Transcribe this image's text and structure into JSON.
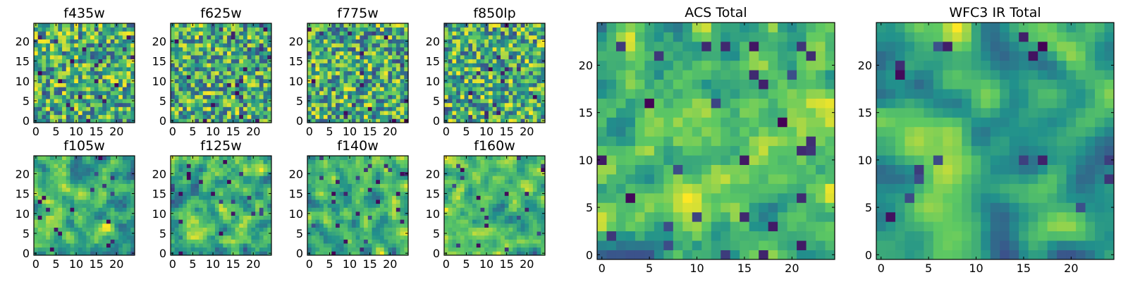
{
  "figure": {
    "colormap": "viridis",
    "colors": [
      "#440154",
      "#3b528b",
      "#21918c",
      "#5ec962",
      "#fde725"
    ]
  },
  "chart_data": [
    {
      "type": "heatmap",
      "title": "f435w",
      "xlim": [
        -0.5,
        24.5
      ],
      "ylim": [
        -0.5,
        24.5
      ],
      "xticks": [
        0,
        5,
        10,
        15,
        20
      ],
      "yticks": [
        0,
        5,
        10,
        15,
        20
      ],
      "grid_size": 25,
      "seed": 11,
      "smoothing": 0
    },
    {
      "type": "heatmap",
      "title": "f625w",
      "xlim": [
        -0.5,
        24.5
      ],
      "ylim": [
        -0.5,
        24.5
      ],
      "xticks": [
        0,
        5,
        10,
        15,
        20
      ],
      "yticks": [
        0,
        5,
        10,
        15,
        20
      ],
      "grid_size": 25,
      "seed": 23,
      "smoothing": 0
    },
    {
      "type": "heatmap",
      "title": "f775w",
      "xlim": [
        -0.5,
        24.5
      ],
      "ylim": [
        -0.5,
        24.5
      ],
      "xticks": [
        0,
        5,
        10,
        15,
        20
      ],
      "yticks": [
        0,
        5,
        10,
        15,
        20
      ],
      "grid_size": 25,
      "seed": 37,
      "smoothing": 0
    },
    {
      "type": "heatmap",
      "title": "f850lp",
      "xlim": [
        -0.5,
        24.5
      ],
      "ylim": [
        -0.5,
        24.5
      ],
      "xticks": [
        0,
        5,
        10,
        15,
        20
      ],
      "yticks": [
        0,
        5,
        10,
        15,
        20
      ],
      "grid_size": 25,
      "seed": 41,
      "smoothing": 0
    },
    {
      "type": "heatmap",
      "title": "f105w",
      "xlim": [
        -0.5,
        24.5
      ],
      "ylim": [
        -0.5,
        24.5
      ],
      "xticks": [
        0,
        5,
        10,
        15,
        20
      ],
      "yticks": [
        0,
        5,
        10,
        15,
        20
      ],
      "grid_size": 25,
      "seed": 53,
      "smoothing": 1
    },
    {
      "type": "heatmap",
      "title": "f125w",
      "xlim": [
        -0.5,
        24.5
      ],
      "ylim": [
        -0.5,
        24.5
      ],
      "xticks": [
        0,
        5,
        10,
        15,
        20
      ],
      "yticks": [
        0,
        5,
        10,
        15,
        20
      ],
      "grid_size": 25,
      "seed": 67,
      "smoothing": 1
    },
    {
      "type": "heatmap",
      "title": "f140w",
      "xlim": [
        -0.5,
        24.5
      ],
      "ylim": [
        -0.5,
        24.5
      ],
      "xticks": [
        0,
        5,
        10,
        15,
        20
      ],
      "yticks": [
        0,
        5,
        10,
        15,
        20
      ],
      "grid_size": 25,
      "seed": 79,
      "smoothing": 1
    },
    {
      "type": "heatmap",
      "title": "f160w",
      "xlim": [
        -0.5,
        24.5
      ],
      "ylim": [
        -0.5,
        24.5
      ],
      "xticks": [
        0,
        5,
        10,
        15,
        20
      ],
      "yticks": [
        0,
        5,
        10,
        15,
        20
      ],
      "grid_size": 25,
      "seed": 83,
      "smoothing": 1
    },
    {
      "type": "heatmap",
      "title": "ACS Total",
      "xlim": [
        -0.5,
        24.5
      ],
      "ylim": [
        -0.5,
        24.5
      ],
      "xticks": [
        0,
        5,
        10,
        15,
        20
      ],
      "yticks": [
        0,
        5,
        10,
        15,
        20
      ],
      "grid_size": 25,
      "seed": 97,
      "smoothing": 1
    },
    {
      "type": "heatmap",
      "title": "WFC3 IR Total",
      "xlim": [
        -0.5,
        24.5
      ],
      "ylim": [
        -0.5,
        24.5
      ],
      "xticks": [
        0,
        5,
        10,
        15,
        20
      ],
      "yticks": [
        0,
        5,
        10,
        15,
        20
      ],
      "grid_size": 25,
      "seed": 101,
      "smoothing": 2
    }
  ]
}
